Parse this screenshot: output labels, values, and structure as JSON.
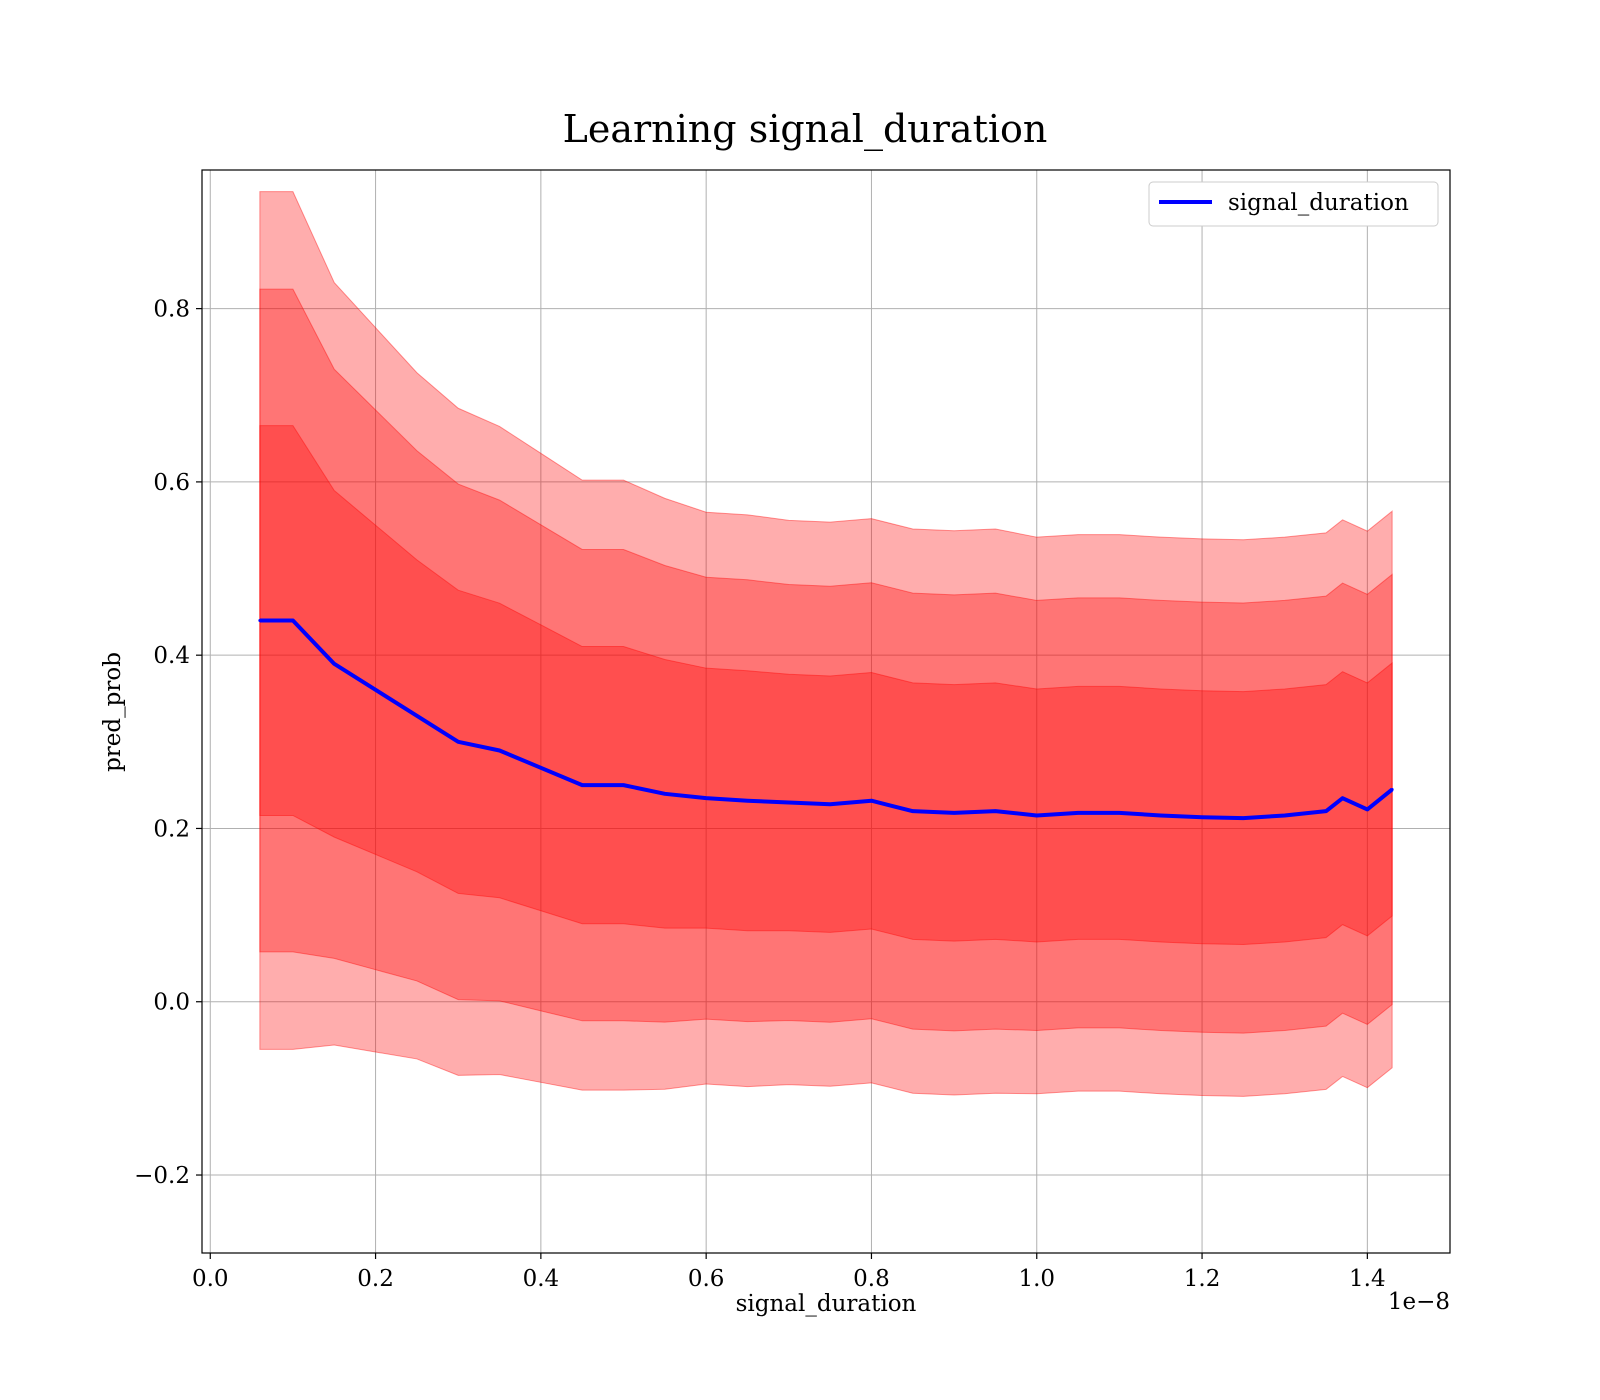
{
  "chart_data": {
    "type": "line",
    "title": "Learning signal_duration",
    "xlabel": "signal_duration",
    "ylabel": "pred_prob",
    "x_offset_text": "1e−8",
    "xlim": [
      -0.01,
      1.5
    ],
    "ylim": [
      -0.29,
      0.96
    ],
    "x_ticks": [
      0.0,
      0.2,
      0.4,
      0.6,
      0.8,
      1.0,
      1.2,
      1.4
    ],
    "x_tick_labels": [
      "0.0",
      "0.2",
      "0.4",
      "0.6",
      "0.8",
      "1.0",
      "1.2",
      "1.4"
    ],
    "y_ticks": [
      -0.2,
      0.0,
      0.2,
      0.4,
      0.6,
      0.8
    ],
    "y_tick_labels": [
      "−0.2",
      "0.0",
      "0.2",
      "0.4",
      "0.6",
      "0.8"
    ],
    "grid": true,
    "legend": {
      "position": "top-right",
      "entries": [
        "signal_duration"
      ]
    },
    "colors": {
      "line": "#0000ff",
      "band": "#ff0000"
    },
    "x": [
      0.06,
      0.1,
      0.15,
      0.2,
      0.25,
      0.3,
      0.35,
      0.4,
      0.45,
      0.5,
      0.55,
      0.6,
      0.65,
      0.7,
      0.75,
      0.8,
      0.85,
      0.9,
      0.95,
      1.0,
      1.05,
      1.1,
      1.15,
      1.2,
      1.25,
      1.3,
      1.35,
      1.37,
      1.4,
      1.43
    ],
    "series": [
      {
        "name": "signal_duration",
        "y": [
          0.44,
          0.44,
          0.39,
          0.36,
          0.33,
          0.3,
          0.29,
          0.27,
          0.25,
          0.25,
          0.24,
          0.235,
          0.232,
          0.23,
          0.228,
          0.232,
          0.22,
          0.218,
          0.22,
          0.215,
          0.218,
          0.218,
          0.215,
          0.213,
          0.212,
          0.215,
          0.22,
          0.235,
          0.222,
          0.245
        ],
        "sd": [
          0.225,
          0.225,
          0.2,
          0.19,
          0.18,
          0.175,
          0.17,
          0.165,
          0.16,
          0.16,
          0.155,
          0.15,
          0.15,
          0.148,
          0.148,
          0.148,
          0.148,
          0.148,
          0.148,
          0.146,
          0.146,
          0.146,
          0.146,
          0.146,
          0.146,
          0.146,
          0.146,
          0.146,
          0.146,
          0.146
        ],
        "bands": [
          1,
          1.7,
          2.2
        ]
      }
    ]
  }
}
